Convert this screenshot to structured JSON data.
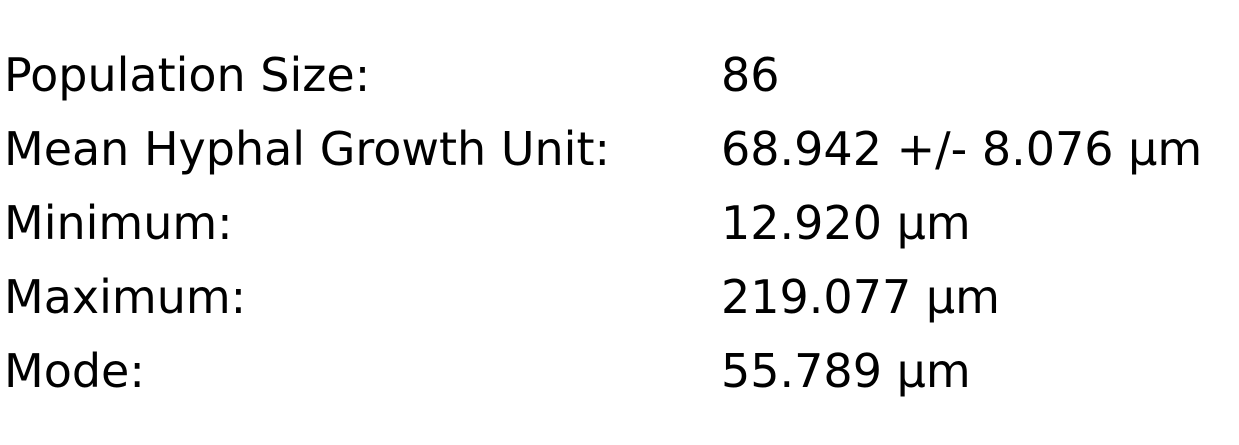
{
  "stats": {
    "rows": [
      {
        "label": "Population Size:",
        "value": "86"
      },
      {
        "label": "Mean Hyphal Growth Unit:",
        "value": "68.942 +/- 8.076 µm"
      },
      {
        "label": "Minimum:",
        "value": "12.920 µm"
      },
      {
        "label": "Maximum:",
        "value": "219.077 µm"
      },
      {
        "label": "Mode:",
        "value": "55.789 µm"
      }
    ]
  }
}
